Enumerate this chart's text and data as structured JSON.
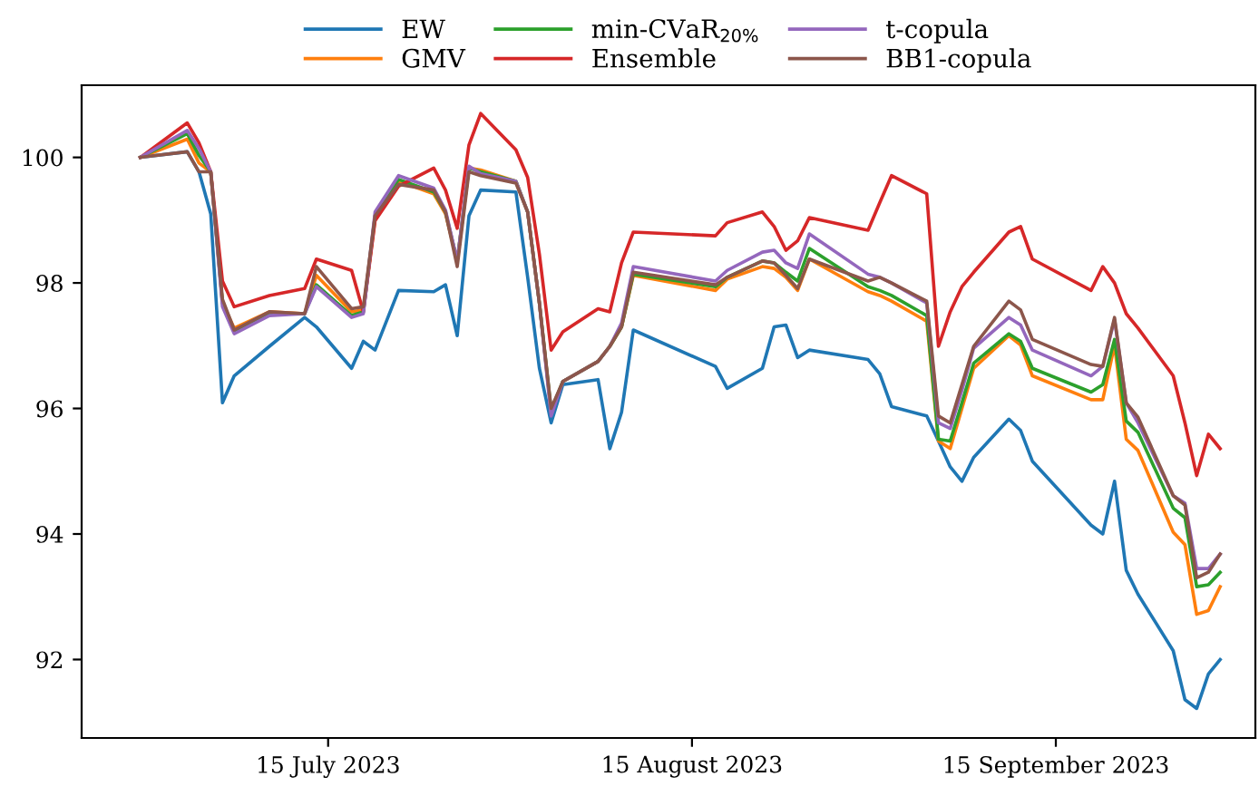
{
  "chart_data": {
    "type": "line",
    "x": [
      "2023-06-29",
      "2023-07-03",
      "2023-07-04",
      "2023-07-05",
      "2023-07-06",
      "2023-07-07",
      "2023-07-10",
      "2023-07-13",
      "2023-07-14",
      "2023-07-17",
      "2023-07-18",
      "2023-07-19",
      "2023-07-21",
      "2023-07-24",
      "2023-07-25",
      "2023-07-26",
      "2023-07-27",
      "2023-07-28",
      "2023-07-31",
      "2023-08-01",
      "2023-08-02",
      "2023-08-03",
      "2023-08-04",
      "2023-08-07",
      "2023-08-08",
      "2023-08-09",
      "2023-08-10",
      "2023-08-17",
      "2023-08-18",
      "2023-08-21",
      "2023-08-22",
      "2023-08-23",
      "2023-08-24",
      "2023-08-25",
      "2023-08-30",
      "2023-08-31",
      "2023-09-01",
      "2023-09-04",
      "2023-09-05",
      "2023-09-06",
      "2023-09-07",
      "2023-09-08",
      "2023-09-11",
      "2023-09-12",
      "2023-09-13",
      "2023-09-18",
      "2023-09-19",
      "2023-09-20",
      "2023-09-21",
      "2023-09-22",
      "2023-09-25",
      "2023-09-26",
      "2023-09-27",
      "2023-09-28",
      "2023-09-29"
    ],
    "series": [
      {
        "name": "EW",
        "color": "#1f77b4",
        "values": [
          100.0,
          100.09,
          99.77,
          99.1,
          96.09,
          96.52,
          96.99,
          97.45,
          97.3,
          96.64,
          97.07,
          96.93,
          97.88,
          97.86,
          97.97,
          97.16,
          99.07,
          99.48,
          99.45,
          98.09,
          96.64,
          95.77,
          96.38,
          96.46,
          95.36,
          95.94,
          97.25,
          96.67,
          96.32,
          96.64,
          97.3,
          97.33,
          96.81,
          96.93,
          96.78,
          96.55,
          96.03,
          95.88,
          95.48,
          95.07,
          94.84,
          95.22,
          95.83,
          95.65,
          95.16,
          94.14,
          94.0,
          94.84,
          93.42,
          93.04,
          92.14,
          91.36,
          91.22,
          91.77,
          92.0
        ]
      },
      {
        "name": "GMV",
        "color": "#ff7f0e",
        "values": [
          100.0,
          100.29,
          99.91,
          99.77,
          97.68,
          97.28,
          97.54,
          97.51,
          98.12,
          97.54,
          97.57,
          99.01,
          99.62,
          99.42,
          99.1,
          98.35,
          99.83,
          99.8,
          99.62,
          99.13,
          97.68,
          95.94,
          96.43,
          96.75,
          96.99,
          97.3,
          98.12,
          97.88,
          98.06,
          98.26,
          98.23,
          98.09,
          97.88,
          98.38,
          97.86,
          97.8,
          97.71,
          97.39,
          95.48,
          95.36,
          96.0,
          96.64,
          97.16,
          97.01,
          96.52,
          96.14,
          96.14,
          97.01,
          95.51,
          95.33,
          94.03,
          93.83,
          92.72,
          92.78,
          93.16
        ]
      },
      {
        "name": "min-CVaR$_{20%}$",
        "color": "#2ca02c",
        "values": [
          100.0,
          100.38,
          100.03,
          99.77,
          97.68,
          97.22,
          97.51,
          97.51,
          97.97,
          97.48,
          97.54,
          99.07,
          99.65,
          99.45,
          99.13,
          98.35,
          99.83,
          99.77,
          99.62,
          99.13,
          97.68,
          95.97,
          96.43,
          96.75,
          96.99,
          97.3,
          98.14,
          97.94,
          98.09,
          98.35,
          98.32,
          98.17,
          98.03,
          98.55,
          97.94,
          97.88,
          97.8,
          97.48,
          95.51,
          95.48,
          96.09,
          96.72,
          97.19,
          97.07,
          96.64,
          96.26,
          96.38,
          97.1,
          95.8,
          95.62,
          94.41,
          94.26,
          93.16,
          93.19,
          93.39
        ]
      },
      {
        "name": "Ensemble",
        "color": "#d62728",
        "values": [
          100.0,
          100.55,
          100.23,
          99.77,
          98.03,
          97.62,
          97.8,
          97.91,
          98.38,
          98.2,
          97.54,
          98.99,
          99.54,
          99.83,
          99.48,
          98.87,
          100.2,
          100.7,
          100.12,
          99.68,
          98.46,
          96.93,
          97.22,
          97.59,
          97.54,
          98.32,
          98.81,
          98.75,
          98.96,
          99.13,
          98.9,
          98.52,
          98.67,
          99.04,
          98.84,
          99.28,
          99.71,
          99.42,
          96.99,
          97.54,
          97.94,
          98.17,
          98.81,
          98.9,
          98.38,
          97.88,
          98.26,
          98.0,
          97.51,
          97.28,
          96.52,
          95.77,
          94.93,
          95.59,
          95.36
        ]
      },
      {
        "name": "t-copula",
        "color": "#9467bd",
        "values": [
          100.0,
          100.43,
          100.14,
          99.77,
          97.62,
          97.19,
          97.48,
          97.51,
          97.94,
          97.45,
          97.51,
          99.13,
          99.71,
          99.51,
          99.16,
          98.35,
          99.86,
          99.74,
          99.62,
          99.13,
          97.68,
          95.88,
          96.43,
          96.75,
          96.99,
          97.36,
          98.26,
          98.03,
          98.2,
          98.49,
          98.52,
          98.32,
          98.23,
          98.78,
          98.14,
          98.09,
          98.0,
          97.68,
          95.77,
          95.68,
          96.29,
          96.96,
          97.45,
          97.33,
          96.93,
          96.52,
          96.67,
          97.42,
          96.09,
          95.77,
          94.61,
          94.49,
          93.45,
          93.45,
          93.68
        ]
      },
      {
        "name": "BB1-copula",
        "color": "#8c564b",
        "values": [
          100.0,
          100.09,
          99.77,
          99.77,
          97.74,
          97.25,
          97.54,
          97.51,
          98.26,
          97.59,
          97.62,
          99.07,
          99.57,
          99.48,
          99.13,
          98.26,
          99.77,
          99.71,
          99.59,
          99.13,
          97.68,
          96.0,
          96.43,
          96.75,
          96.99,
          97.3,
          98.17,
          97.97,
          98.09,
          98.35,
          98.32,
          98.12,
          97.91,
          98.38,
          98.03,
          98.09,
          98.0,
          97.71,
          95.88,
          95.77,
          96.38,
          96.99,
          97.71,
          97.57,
          97.1,
          96.7,
          96.67,
          97.45,
          96.09,
          95.86,
          94.61,
          94.46,
          93.3,
          93.39,
          93.68
        ]
      }
    ],
    "xlim": [
      "2023-06-24",
      "2023-10-02"
    ],
    "xticks": [
      {
        "value": "2023-07-15",
        "label": "15 July 2023"
      },
      {
        "value": "2023-08-15",
        "label": "15 August 2023"
      },
      {
        "value": "2023-09-15",
        "label": "15 September 2023"
      }
    ],
    "ylim": [
      90.75,
      101.15
    ],
    "yticks": [
      92,
      94,
      96,
      98,
      100
    ],
    "grid": false,
    "legend": "top",
    "marker": "none",
    "line_style": "solid"
  }
}
